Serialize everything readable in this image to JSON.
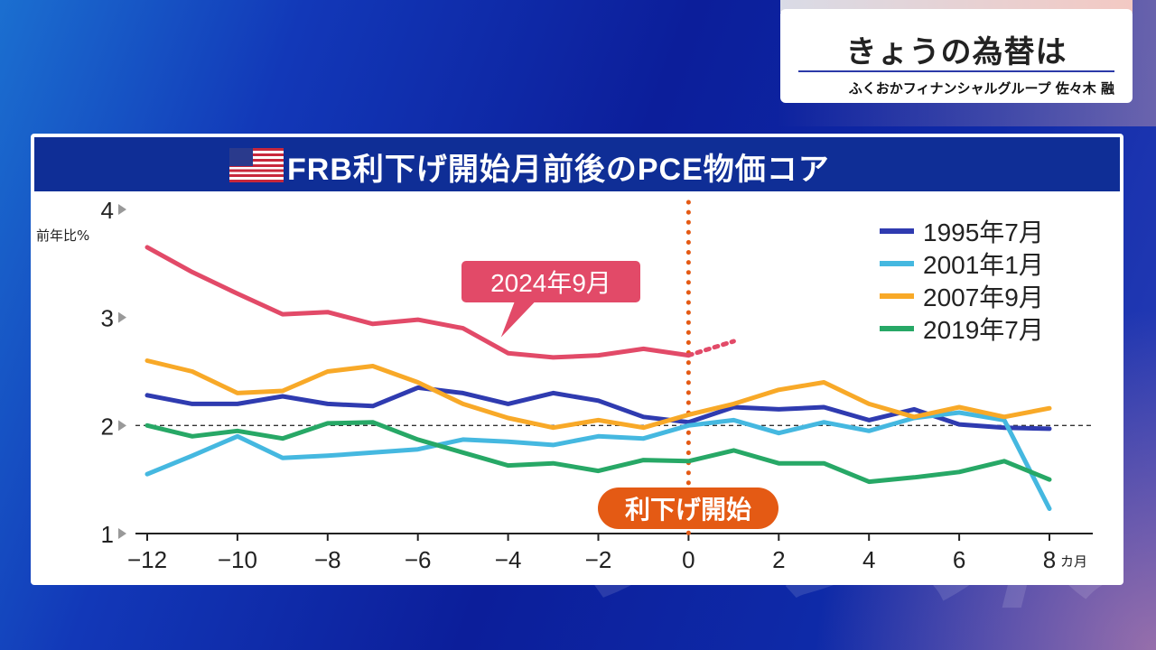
{
  "header": {
    "title": "きょうの為替は",
    "subtitle": "ふくおかフィナンシャルグループ 佐々木 融"
  },
  "chart_title": "FRB利下げ開始月前後のPCE物価コア",
  "colors": {
    "1995": "#2f3bb0",
    "2001": "#45b8e0",
    "2007": "#f8a928",
    "2019": "#27a866",
    "2024": "#e24a68",
    "marker": "#e45a14"
  },
  "chart_data": {
    "type": "line",
    "title": "FRB利下げ開始月前後のPCE物価コア",
    "ylabel": "前年比%",
    "xlabel": "カ月",
    "xlim": [
      -12,
      8
    ],
    "ylim": [
      1,
      4
    ],
    "x_ticks": [
      -12,
      -10,
      -8,
      -6,
      -4,
      -2,
      0,
      2,
      4,
      6,
      8
    ],
    "x_tick_labels": [
      "−12",
      "−10",
      "−8",
      "−6",
      "−4",
      "−2",
      "0",
      "2",
      "4",
      "6",
      "8"
    ],
    "y_ticks": [
      1,
      2,
      3,
      4
    ],
    "y_tick_labels": [
      "1",
      "2",
      "3",
      "4"
    ],
    "reference_line_y": 2,
    "marker_x": 0,
    "marker_label": "利下げ開始",
    "legend_position": "top-right",
    "series": [
      {
        "name": "1995年7月",
        "key": "1995",
        "x": [
          -12,
          -11,
          -10,
          -9,
          -8,
          -7,
          -6,
          -5,
          -4,
          -3,
          -2,
          -1,
          0,
          1,
          2,
          3,
          4,
          5,
          6,
          7,
          8
        ],
        "values": [
          2.28,
          2.2,
          2.2,
          2.27,
          2.2,
          2.18,
          2.35,
          2.3,
          2.2,
          2.3,
          2.23,
          2.08,
          2.03,
          2.17,
          2.15,
          2.17,
          2.05,
          2.15,
          2.01,
          1.98,
          1.97
        ]
      },
      {
        "name": "2001年1月",
        "key": "2001",
        "x": [
          -12,
          -11,
          -10,
          -9,
          -8,
          -7,
          -6,
          -5,
          -4,
          -3,
          -2,
          -1,
          0,
          1,
          2,
          3,
          4,
          5,
          6,
          7,
          8
        ],
        "values": [
          1.55,
          1.72,
          1.9,
          1.7,
          1.72,
          1.75,
          1.78,
          1.87,
          1.85,
          1.82,
          1.9,
          1.88,
          2.0,
          2.05,
          1.93,
          2.03,
          1.95,
          2.07,
          2.12,
          2.05,
          1.23
        ]
      },
      {
        "name": "2007年9月",
        "key": "2007",
        "x": [
          -12,
          -11,
          -10,
          -9,
          -8,
          -7,
          -6,
          -5,
          -4,
          -3,
          -2,
          -1,
          0,
          1,
          2,
          3,
          4,
          5,
          6,
          7,
          8
        ],
        "values": [
          2.6,
          2.5,
          2.3,
          2.32,
          2.5,
          2.55,
          2.4,
          2.2,
          2.07,
          1.98,
          2.05,
          1.98,
          2.1,
          2.2,
          2.33,
          2.4,
          2.2,
          2.08,
          2.17,
          2.08,
          2.16
        ]
      },
      {
        "name": "2019年7月",
        "key": "2019",
        "x": [
          -12,
          -11,
          -10,
          -9,
          -8,
          -7,
          -6,
          -5,
          -4,
          -3,
          -2,
          -1,
          0,
          1,
          2,
          3,
          4,
          5,
          6,
          7,
          8
        ],
        "values": [
          2.0,
          1.9,
          1.95,
          1.88,
          2.02,
          2.03,
          1.87,
          1.75,
          1.63,
          1.65,
          1.58,
          1.68,
          1.67,
          1.77,
          1.65,
          1.65,
          1.48,
          1.52,
          1.57,
          1.67,
          1.5
        ]
      },
      {
        "name": "2024年9月",
        "key": "2024",
        "x": [
          -12,
          -11,
          -10,
          -9,
          -8,
          -7,
          -6,
          -5,
          -4,
          -3,
          -2,
          -1,
          0
        ],
        "values": [
          3.65,
          3.42,
          3.22,
          3.03,
          3.05,
          2.94,
          2.98,
          2.9,
          2.67,
          2.63,
          2.65,
          2.71,
          2.65
        ],
        "projection": {
          "x": [
            0,
            1
          ],
          "values": [
            2.65,
            2.78
          ]
        }
      }
    ],
    "callout": {
      "series": "2024",
      "text": "2024年9月"
    }
  }
}
